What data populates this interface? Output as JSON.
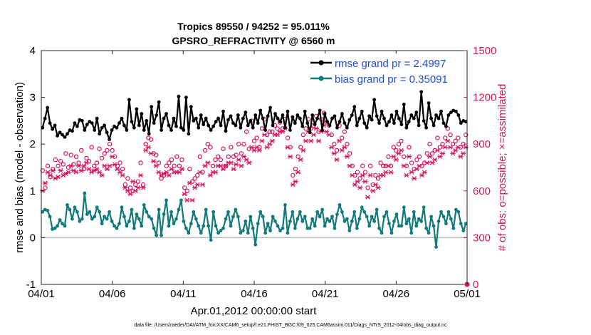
{
  "chart_data": {
    "type": "line",
    "title": "Tropics 89550 / 94252 = 95.011%",
    "subtitle": "GPSRO_REFRACTIVITY @ 6560 m",
    "xlabel": "Apr.01,2012 00:00:00 start",
    "ylabel_left": "rmse and bias (model - observation)",
    "ylabel_right": "# of obs: o=possible; ×=assimilated",
    "x_ticks": [
      "04/01",
      "04/06",
      "04/11",
      "04/16",
      "04/21",
      "04/26",
      "05/01"
    ],
    "ylim_left": [
      -1,
      4
    ],
    "y_ticks_left": [
      "-1",
      "0",
      "1",
      "2",
      "3",
      "4"
    ],
    "ylim_right": [
      0,
      1500
    ],
    "y_ticks_right": [
      "0",
      "300",
      "600",
      "900",
      "1200",
      "1500"
    ],
    "xlim_days": [
      0,
      30
    ],
    "footnote": "data file: /Users/raeder/DAI/ATM_forcXX/CAM6_setup/f.e21.FHIST_BGC.f09_025.CAM6assim.011/Diags_NTrS_2012-04/obs_diag_output.nc",
    "colors": {
      "rmse": "#000000",
      "bias": "#117a7a",
      "obs": "#d6145f",
      "legend_text": "#1f4fd9",
      "zero_line": "#bbbbbb"
    },
    "legend": [
      {
        "name": "rmse grand pr = 2.4997",
        "color": "#000000"
      },
      {
        "name": "bias grand pr = 0.35091",
        "color": "#117a7a"
      }
    ],
    "series": [
      {
        "name": "rmse",
        "axis": "left",
        "values": [
          2.35,
          2.55,
          2.78,
          2.45,
          2.32,
          2.4,
          2.18,
          2.25,
          2.2,
          2.15,
          2.22,
          2.3,
          2.28,
          2.45,
          2.38,
          2.52,
          2.5,
          2.3,
          2.42,
          2.48,
          2.45,
          2.3,
          2.55,
          2.22,
          2.35,
          2.4,
          2.25,
          2.1,
          2.3,
          2.38,
          2.35,
          2.45,
          2.55,
          2.4,
          2.3,
          2.95,
          2.48,
          2.35,
          2.75,
          2.4,
          2.65,
          2.3,
          2.5,
          2.22,
          2.8,
          2.45,
          2.62,
          2.9,
          2.3,
          2.55,
          2.65,
          2.4,
          2.3,
          2.55,
          2.38,
          3.02,
          2.35,
          2.3,
          3.0,
          2.22,
          2.8,
          2.5,
          2.55,
          2.35,
          2.62,
          2.42,
          2.55,
          2.4,
          2.3,
          2.38,
          2.48,
          2.55,
          2.4,
          2.7,
          2.28,
          2.52,
          2.6,
          2.45,
          2.4,
          2.62,
          2.35,
          2.55,
          2.68,
          2.4,
          2.5,
          2.35,
          2.62,
          2.45,
          2.72,
          2.55,
          2.3,
          2.6,
          2.78,
          2.4,
          2.65,
          2.55,
          2.48,
          2.62,
          2.35,
          2.7,
          2.3,
          2.58,
          2.45,
          2.62,
          2.55,
          2.38,
          2.7,
          2.45,
          2.25,
          2.62,
          2.42,
          2.55,
          2.72,
          2.3,
          2.65,
          2.48,
          2.4,
          2.55,
          2.6,
          2.35,
          2.48,
          2.65,
          2.45,
          2.35,
          2.52,
          2.62,
          2.8,
          2.4,
          2.55,
          2.7,
          2.45,
          2.35,
          2.6,
          2.52,
          2.95,
          2.6,
          2.45,
          2.7,
          2.55,
          2.4,
          2.48,
          2.62,
          2.45,
          2.7,
          2.55,
          2.42,
          2.85,
          2.35,
          2.48,
          2.62,
          2.55,
          2.68,
          2.4,
          3.12,
          2.5,
          2.35,
          2.88,
          2.55,
          2.4,
          2.62,
          2.55,
          2.7,
          2.45,
          2.38,
          2.62,
          2.68,
          2.72,
          2.7,
          2.62,
          2.45,
          2.5,
          2.48
        ]
      },
      {
        "name": "bias",
        "axis": "left",
        "values": [
          0.55,
          0.6,
          0.58,
          0.45,
          0.18,
          0.2,
          0.25,
          0.38,
          0.3,
          0.25,
          0.7,
          0.6,
          0.4,
          0.65,
          0.55,
          0.35,
          0.4,
          0.95,
          0.5,
          0.55,
          0.4,
          0.45,
          0.65,
          0.55,
          0.3,
          0.45,
          0.4,
          0.55,
          0.35,
          0.25,
          0.2,
          0.3,
          0.65,
          0.45,
          0.25,
          0.35,
          0.6,
          0.2,
          0.5,
          0.4,
          0.25,
          0.7,
          0.55,
          0.45,
          0.4,
          0.2,
          0.05,
          0.6,
          0.05,
          0.5,
          0.8,
          0.25,
          0.55,
          0.3,
          0.4,
          0.6,
          0.8,
          0.35,
          0.2,
          0.1,
          0.3,
          0.55,
          0.4,
          0.25,
          0.1,
          0.25,
          0.6,
          0.25,
          -0.05,
          0.55,
          0.25,
          0.1,
          0.15,
          0.2,
          0.4,
          0.55,
          0.25,
          0.45,
          0.6,
          0.45,
          0.1,
          0.15,
          0.35,
          0.1,
          0.45,
          0.2,
          -0.15,
          0.3,
          0.55,
          0.45,
          0.1,
          0.3,
          0.15,
          0.45,
          0.35,
          0.25,
          0.15,
          0.2,
          0.7,
          0.1,
          0.35,
          0.55,
          0.2,
          0.4,
          0.55,
          0.35,
          0.45,
          0.2,
          0.2,
          0.4,
          0.25,
          0.55,
          0.45,
          0.6,
          0.25,
          0.4,
          0.35,
          0.45,
          0.2,
          0.5,
          0.7,
          0.55,
          0.35,
          0.4,
          0.15,
          0.35,
          0.55,
          0.2,
          0.4,
          0.65,
          0.55,
          0.45,
          0.25,
          0.45,
          0.35,
          0.6,
          0.2,
          0.1,
          0.45,
          0.55,
          0.3,
          0.1,
          0.35,
          0.5,
          0.25,
          0.25,
          0.65,
          0.3,
          0.4,
          0.1,
          0.55,
          0.25,
          0.4,
          0.35,
          0.65,
          0.2,
          0.1,
          0.45,
          0.25,
          -0.2,
          0.35,
          0.55,
          0.45,
          0.3,
          0.55,
          0.4,
          0.2,
          0.6,
          0.55,
          0.3,
          0.15,
          0.3
        ]
      },
      {
        "name": "possible obs",
        "axis": "right",
        "marker": "o",
        "values": [
          730,
          620,
          760,
          690,
          740,
          800,
          760,
          790,
          770,
          840,
          750,
          830,
          770,
          820,
          780,
          860,
          740,
          810,
          790,
          880,
          760,
          780,
          870,
          810,
          840,
          860,
          900,
          860,
          820,
          760,
          780,
          740,
          640,
          680,
          620,
          600,
          640,
          660,
          780,
          640,
          900,
          940,
          930,
          840,
          830,
          780,
          680,
          700,
          760,
          780,
          800,
          760,
          820,
          760,
          800,
          620,
          600,
          740,
          660,
          680,
          700,
          820,
          720,
          860,
          900,
          880,
          760,
          800,
          820,
          800,
          870,
          760,
          820,
          880,
          820,
          830,
          900,
          840,
          900,
          980,
          870,
          1050,
          920,
          940,
          880,
          1000,
          1060,
          960,
          980,
          980,
          1020,
          1000,
          1040,
          1000,
          1060,
          940,
          880,
          700,
          740,
          820,
          880,
          960,
          1000,
          1060,
          1000,
          1020,
          1080,
          980,
          1060,
          1100,
          1040,
          1020,
          960,
          900,
          860,
          1020,
          940,
          980,
          900,
          840,
          760,
          700,
          720,
          680,
          760,
          720,
          620,
          760,
          640,
          700,
          680,
          780,
          760,
          760,
          820,
          760,
          880,
          860,
          900,
          920,
          820,
          760,
          880,
          780,
          740,
          800,
          820,
          760,
          780,
          840,
          900,
          840,
          860,
          940,
          880,
          900,
          940,
          1000,
          960,
          900,
          920,
          940,
          880,
          900,
          960
        ]
      },
      {
        "name": "assimilated obs",
        "axis": "right",
        "marker": "x",
        "values": [
          600,
          650,
          720,
          700,
          730,
          680,
          690,
          730,
          700,
          710,
          720,
          760,
          730,
          720,
          760,
          730,
          760,
          780,
          740,
          720,
          730,
          740,
          720,
          700,
          760,
          740,
          760,
          820,
          770,
          740,
          720,
          700,
          620,
          600,
          580,
          660,
          600,
          620,
          700,
          620,
          860,
          880,
          840,
          790,
          760,
          720,
          700,
          710,
          720,
          700,
          740,
          720,
          720,
          720,
          740,
          580,
          540,
          650,
          540,
          620,
          640,
          720,
          640,
          760,
          780,
          700,
          720,
          720,
          760,
          760,
          740,
          760,
          780,
          780,
          740,
          770,
          800,
          760,
          820,
          800,
          780,
          880,
          860,
          880,
          860,
          920,
          960,
          880,
          900,
          920,
          960,
          960,
          980,
          980,
          1000,
          880,
          820,
          640,
          660,
          720,
          800,
          860,
          920,
          980,
          920,
          960,
          1000,
          920,
          980,
          1020,
          980,
          960,
          880,
          840,
          800,
          920,
          860,
          880,
          820,
          760,
          700,
          640,
          660,
          620,
          700,
          660,
          560,
          700,
          600,
          640,
          620,
          700,
          700,
          720,
          760,
          720,
          820,
          800,
          840,
          860,
          760,
          700,
          820,
          720,
          680,
          740,
          760,
          700,
          720,
          780,
          820,
          780,
          800,
          860,
          820,
          840,
          880,
          920,
          880,
          840,
          860,
          880,
          820,
          840,
          880
        ]
      }
    ]
  }
}
